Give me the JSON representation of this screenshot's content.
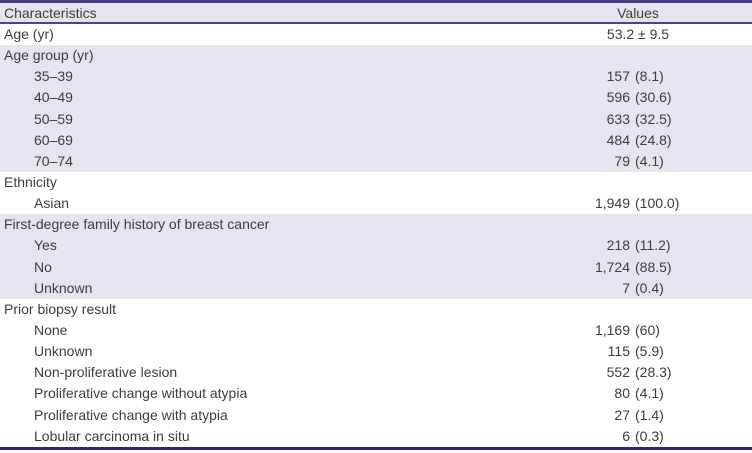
{
  "table": {
    "columns": [
      "Characteristics",
      "Values"
    ],
    "colors": {
      "border_top": "#453c82",
      "header_underline": "#4c4390",
      "border_bottom": "#2c2970",
      "shaded_row_bg": "#e6e4ef",
      "text": "#3d3d3d"
    },
    "sections": [
      {
        "label": "Age (yr)",
        "shaded": false,
        "value_main": "53.2 ± 9.5",
        "value_paren": "",
        "rows": []
      },
      {
        "label": "Age group (yr)",
        "shaded": true,
        "value_main": "",
        "value_paren": "",
        "rows": [
          {
            "label": "35–39",
            "value_main": "157",
            "value_paren": "(8.1)"
          },
          {
            "label": "40–49",
            "value_main": "596",
            "value_paren": "(30.6)"
          },
          {
            "label": "50–59",
            "value_main": "633",
            "value_paren": "(32.5)"
          },
          {
            "label": "60–69",
            "value_main": "484",
            "value_paren": "(24.8)"
          },
          {
            "label": "70–74",
            "value_main": "79",
            "value_paren": "(4.1)"
          }
        ]
      },
      {
        "label": "Ethnicity",
        "shaded": false,
        "value_main": "",
        "value_paren": "",
        "rows": [
          {
            "label": "Asian",
            "value_main": "1,949",
            "value_paren": "(100.0)"
          }
        ]
      },
      {
        "label": "First-degree family history of breast cancer",
        "shaded": true,
        "value_main": "",
        "value_paren": "",
        "rows": [
          {
            "label": "Yes",
            "value_main": "218",
            "value_paren": "(11.2)"
          },
          {
            "label": "No",
            "value_main": "1,724",
            "value_paren": "(88.5)"
          },
          {
            "label": "Unknown",
            "value_main": "7",
            "value_paren": "(0.4)"
          }
        ]
      },
      {
        "label": "Prior biopsy result",
        "shaded": false,
        "value_main": "",
        "value_paren": "",
        "rows": [
          {
            "label": "None",
            "value_main": "1,169",
            "value_paren": "(60)"
          },
          {
            "label": "Unknown",
            "value_main": "115",
            "value_paren": "(5.9)"
          },
          {
            "label": "Non-proliferative lesion",
            "value_main": "552",
            "value_paren": "(28.3)"
          },
          {
            "label": "Proliferative change without atypia",
            "value_main": "80",
            "value_paren": "(4.1)"
          },
          {
            "label": "Proliferative change with atypia",
            "value_main": "27",
            "value_paren": "(1.4)"
          },
          {
            "label": "Lobular carcinoma in situ",
            "value_main": "6",
            "value_paren": "(0.3)"
          }
        ]
      }
    ]
  }
}
